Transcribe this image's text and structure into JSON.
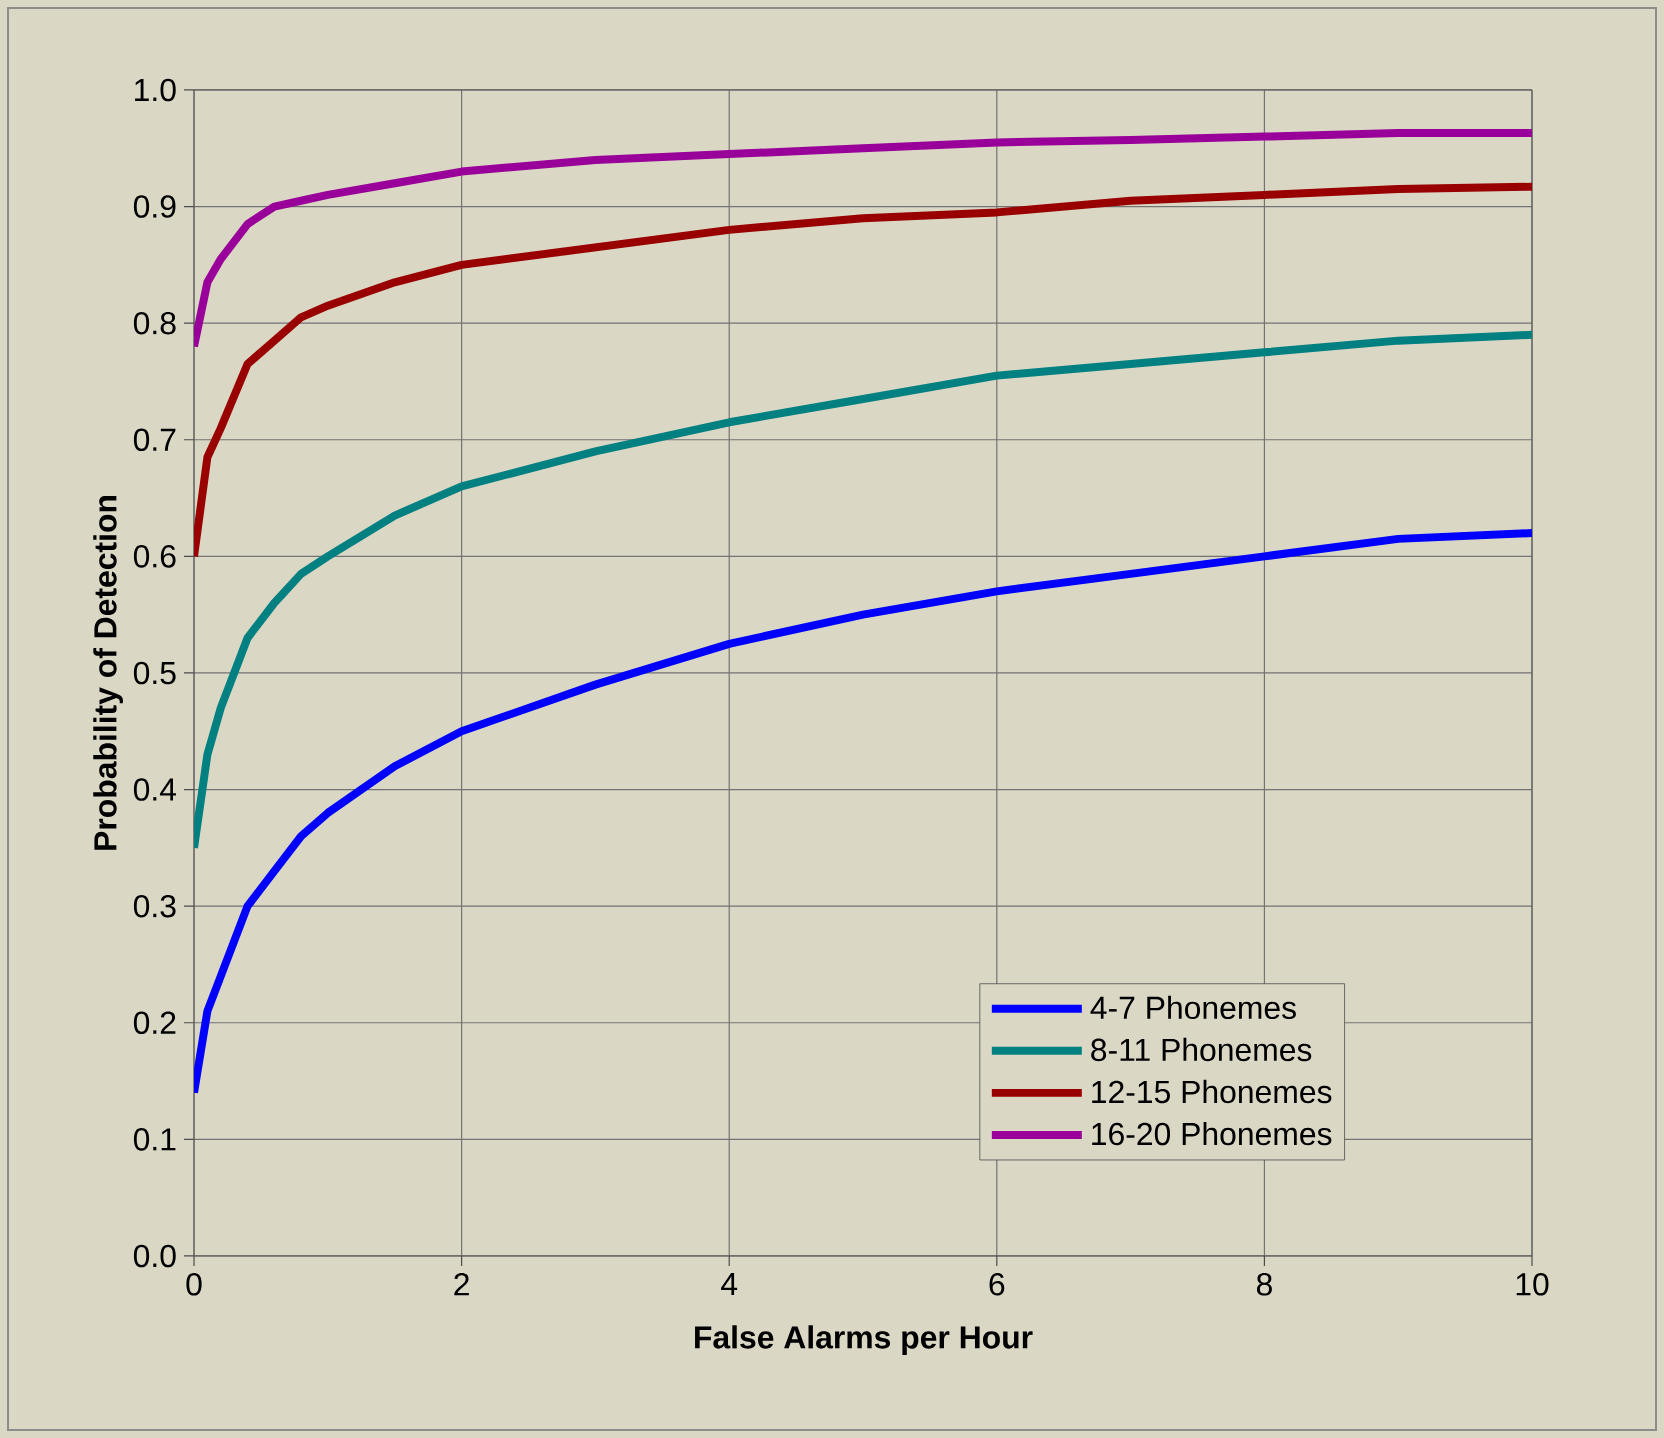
{
  "chart_data": {
    "type": "line",
    "xlabel": "False Alarms per Hour",
    "ylabel": "Probability of Detection",
    "x": [
      0,
      0.1,
      0.2,
      0.4,
      0.6,
      0.8,
      1,
      1.5,
      2,
      3,
      4,
      5,
      6,
      7,
      8,
      9,
      10
    ],
    "series": [
      {
        "name": "4-7 Phonemes",
        "color": "#0000ff",
        "values": [
          0.14,
          0.21,
          0.24,
          0.3,
          0.33,
          0.36,
          0.38,
          0.42,
          0.45,
          0.49,
          0.525,
          0.55,
          0.57,
          0.585,
          0.6,
          0.615,
          0.62
        ]
      },
      {
        "name": "8-11 Phonemes",
        "color": "#008080",
        "values": [
          0.35,
          0.43,
          0.47,
          0.53,
          0.56,
          0.585,
          0.6,
          0.635,
          0.66,
          0.69,
          0.715,
          0.735,
          0.755,
          0.765,
          0.775,
          0.785,
          0.79
        ]
      },
      {
        "name": "12-15 Phonemes",
        "color": "#990000",
        "values": [
          0.6,
          0.685,
          0.71,
          0.765,
          0.785,
          0.805,
          0.815,
          0.835,
          0.85,
          0.865,
          0.88,
          0.89,
          0.895,
          0.905,
          0.91,
          0.915,
          0.917
        ]
      },
      {
        "name": "16-20 Phonemes",
        "color": "#990099",
        "values": [
          0.78,
          0.835,
          0.855,
          0.885,
          0.9,
          0.905,
          0.91,
          0.92,
          0.93,
          0.94,
          0.945,
          0.95,
          0.955,
          0.957,
          0.96,
          0.963,
          0.963
        ]
      }
    ],
    "xlim": [
      0,
      10
    ],
    "xticks": [
      0,
      2,
      4,
      6,
      8,
      10
    ],
    "ylim": [
      0,
      1
    ],
    "yticks": [
      {
        "value": 0,
        "label": "0.0"
      },
      0.1,
      0.2,
      0.3,
      0.4,
      0.5,
      0.6,
      0.7,
      0.8,
      0.9,
      {
        "value": 1,
        "label": "1.0"
      }
    ],
    "grid": true,
    "legend": "bottom right",
    "marker": "none",
    "line_style": "solid"
  }
}
